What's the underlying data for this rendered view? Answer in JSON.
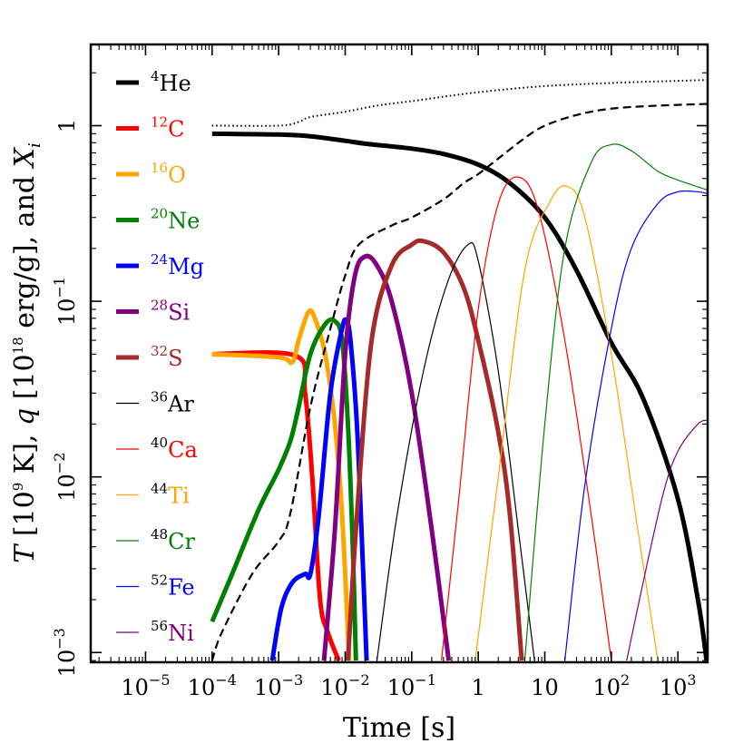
{
  "chart_data": {
    "type": "line",
    "xlabel": "Time [s]",
    "ylabel": "T [10^9 K], q [10^18 erg/g], and X_i",
    "x_scale": "log",
    "y_scale": "log",
    "xlim": [
      1.5e-06,
      2800
    ],
    "ylim": [
      0.00088,
      2.9
    ],
    "x_ticks": [
      {
        "value": 1e-05,
        "base": "10",
        "exp": "−5",
        "text": ""
      },
      {
        "value": 0.0001,
        "base": "10",
        "exp": "−4",
        "text": ""
      },
      {
        "value": 0.001,
        "base": "10",
        "exp": "−3",
        "text": ""
      },
      {
        "value": 0.01,
        "base": "10",
        "exp": "−2",
        "text": ""
      },
      {
        "value": 0.1,
        "base": "10",
        "exp": "−1",
        "text": ""
      },
      {
        "value": 1,
        "base": "",
        "exp": "",
        "text": "1"
      },
      {
        "value": 10,
        "base": "",
        "exp": "",
        "text": "10"
      },
      {
        "value": 100,
        "base": "10",
        "exp": "2",
        "text": ""
      },
      {
        "value": 1000,
        "base": "10",
        "exp": "3",
        "text": ""
      }
    ],
    "y_ticks": [
      {
        "value": 0.001,
        "base": "10",
        "exp": "−3",
        "text": ""
      },
      {
        "value": 0.01,
        "base": "10",
        "exp": "−2",
        "text": ""
      },
      {
        "value": 0.1,
        "base": "10",
        "exp": "−1",
        "text": ""
      },
      {
        "value": 1,
        "base": "",
        "exp": "",
        "text": "1"
      }
    ],
    "legend_position": "left",
    "series": [
      {
        "name": "4He",
        "mass": "4",
        "element": "He",
        "color": "#000000",
        "thick": true,
        "points": [
          [
            0.0001,
            0.9
          ],
          [
            0.001,
            0.89
          ],
          [
            0.003,
            0.87
          ],
          [
            0.01,
            0.82
          ],
          [
            0.02,
            0.79
          ],
          [
            0.1,
            0.74
          ],
          [
            0.3,
            0.69
          ],
          [
            1,
            0.6
          ],
          [
            3,
            0.47
          ],
          [
            10,
            0.3
          ],
          [
            30,
            0.15
          ],
          [
            100,
            0.058
          ],
          [
            300,
            0.028
          ],
          [
            1000,
            0.0075
          ],
          [
            2000,
            0.002
          ],
          [
            2700,
            0.0009
          ]
        ]
      },
      {
        "name": "12C",
        "mass": "12",
        "element": "C",
        "color": "#ff0000",
        "thick": true,
        "points": [
          [
            0.0001,
            0.05
          ],
          [
            0.0018,
            0.049
          ],
          [
            0.0025,
            0.03
          ],
          [
            0.0032,
            0.01
          ],
          [
            0.0042,
            0.002
          ],
          [
            0.0055,
            0.0013
          ],
          [
            0.008,
            0.0009
          ]
        ]
      },
      {
        "name": "16O",
        "mass": "16",
        "element": "O",
        "color": "#ffa500",
        "thick": true,
        "points": [
          [
            0.0001,
            0.05
          ],
          [
            0.001,
            0.048
          ],
          [
            0.0016,
            0.045
          ],
          [
            0.002,
            0.06
          ],
          [
            0.0028,
            0.087
          ],
          [
            0.0035,
            0.08
          ],
          [
            0.005,
            0.05
          ],
          [
            0.007,
            0.02
          ],
          [
            0.009,
            0.006
          ],
          [
            0.0115,
            0.0009
          ]
        ]
      },
      {
        "name": "20Ne",
        "mass": "20",
        "element": "Ne",
        "color": "#008000",
        "thick": true,
        "points": [
          [
            0.0001,
            0.0015
          ],
          [
            0.0002,
            0.0028
          ],
          [
            0.0005,
            0.0065
          ],
          [
            0.001,
            0.011
          ],
          [
            0.0015,
            0.016
          ],
          [
            0.002,
            0.025
          ],
          [
            0.003,
            0.05
          ],
          [
            0.005,
            0.074
          ],
          [
            0.007,
            0.077
          ],
          [
            0.009,
            0.06
          ],
          [
            0.011,
            0.02
          ],
          [
            0.013,
            0.004
          ],
          [
            0.0145,
            0.0009
          ]
        ]
      },
      {
        "name": "24Mg",
        "mass": "24",
        "element": "Mg",
        "color": "#0000ff",
        "thick": true,
        "points": [
          [
            0.0008,
            0.0009
          ],
          [
            0.0011,
            0.0018
          ],
          [
            0.0016,
            0.0025
          ],
          [
            0.0025,
            0.0028
          ],
          [
            0.003,
            0.0028
          ],
          [
            0.004,
            0.006
          ],
          [
            0.006,
            0.03
          ],
          [
            0.009,
            0.07
          ],
          [
            0.0105,
            0.077
          ],
          [
            0.012,
            0.06
          ],
          [
            0.015,
            0.02
          ],
          [
            0.018,
            0.004
          ],
          [
            0.021,
            0.0009
          ]
        ]
      },
      {
        "name": "28Si",
        "mass": "28",
        "element": "Si",
        "color": "#800080",
        "thick": true,
        "points": [
          [
            0.0048,
            0.0009
          ],
          [
            0.007,
            0.005
          ],
          [
            0.01,
            0.05
          ],
          [
            0.014,
            0.14
          ],
          [
            0.02,
            0.18
          ],
          [
            0.03,
            0.16
          ],
          [
            0.05,
            0.1
          ],
          [
            0.1,
            0.03
          ],
          [
            0.2,
            0.005
          ],
          [
            0.36,
            0.0009
          ]
        ]
      },
      {
        "name": "32S",
        "mass": "32",
        "element": "S",
        "color": "#a52a2a",
        "thick": true,
        "points": [
          [
            0.011,
            0.0009
          ],
          [
            0.015,
            0.006
          ],
          [
            0.025,
            0.06
          ],
          [
            0.05,
            0.16
          ],
          [
            0.1,
            0.21
          ],
          [
            0.15,
            0.22
          ],
          [
            0.3,
            0.19
          ],
          [
            0.6,
            0.12
          ],
          [
            1,
            0.06
          ],
          [
            2,
            0.018
          ],
          [
            3,
            0.006
          ],
          [
            4.5,
            0.0009
          ]
        ]
      },
      {
        "name": "36Ar",
        "mass": "36",
        "element": "Ar",
        "color": "#000000",
        "thick": false,
        "points": [
          [
            0.03,
            0.0009
          ],
          [
            0.06,
            0.006
          ],
          [
            0.15,
            0.04
          ],
          [
            0.35,
            0.13
          ],
          [
            0.7,
            0.21
          ],
          [
            1,
            0.17
          ],
          [
            2,
            0.04
          ],
          [
            4,
            0.005
          ],
          [
            7,
            0.0009
          ]
        ]
      },
      {
        "name": "40Ca",
        "mass": "40",
        "element": "Ca",
        "color": "#ff0000",
        "thick": false,
        "points": [
          [
            0.28,
            0.0009
          ],
          [
            0.5,
            0.007
          ],
          [
            1,
            0.09
          ],
          [
            2,
            0.36
          ],
          [
            4,
            0.51
          ],
          [
            8,
            0.33
          ],
          [
            20,
            0.06
          ],
          [
            50,
            0.006
          ],
          [
            100,
            0.0009
          ]
        ]
      },
      {
        "name": "44Ti",
        "mass": "44",
        "element": "Ti",
        "color": "#ffa500",
        "thick": false,
        "points": [
          [
            0.9,
            0.0009
          ],
          [
            2,
            0.01
          ],
          [
            5,
            0.15
          ],
          [
            12,
            0.37
          ],
          [
            22,
            0.45
          ],
          [
            40,
            0.3
          ],
          [
            100,
            0.05
          ],
          [
            250,
            0.005
          ],
          [
            500,
            0.0009
          ]
        ]
      },
      {
        "name": "48Cr",
        "mass": "48",
        "element": "Cr",
        "color": "#008000",
        "thick": false,
        "points": [
          [
            5,
            0.0009
          ],
          [
            10,
            0.02
          ],
          [
            20,
            0.2
          ],
          [
            50,
            0.62
          ],
          [
            100,
            0.78
          ],
          [
            200,
            0.72
          ],
          [
            500,
            0.55
          ],
          [
            1000,
            0.49
          ],
          [
            2800,
            0.43
          ]
        ]
      },
      {
        "name": "52Fe",
        "mass": "52",
        "element": "Fe",
        "color": "#0000ff",
        "thick": false,
        "points": [
          [
            20,
            0.0009
          ],
          [
            40,
            0.009
          ],
          [
            100,
            0.07
          ],
          [
            200,
            0.2
          ],
          [
            500,
            0.36
          ],
          [
            1000,
            0.42
          ],
          [
            2000,
            0.42
          ],
          [
            2800,
            0.41
          ]
        ]
      },
      {
        "name": "56Ni",
        "mass": "56",
        "element": "Ni",
        "color": "#800080",
        "thick": false,
        "points": [
          [
            170,
            0.0009
          ],
          [
            300,
            0.0025
          ],
          [
            600,
            0.008
          ],
          [
            1000,
            0.014
          ],
          [
            2000,
            0.02
          ],
          [
            2800,
            0.021
          ]
        ]
      },
      {
        "name": "",
        "style": "dotted",
        "color": "#000000",
        "thick": false,
        "in_legend": false,
        "points": [
          [
            0.0001,
            1.0
          ],
          [
            0.001,
            1.0
          ],
          [
            0.002,
            1.05
          ],
          [
            0.003,
            1.12
          ],
          [
            0.01,
            1.2
          ],
          [
            0.03,
            1.3
          ],
          [
            0.1,
            1.38
          ],
          [
            1,
            1.55
          ],
          [
            10,
            1.68
          ],
          [
            100,
            1.75
          ],
          [
            1000,
            1.8
          ],
          [
            2800,
            1.82
          ]
        ]
      },
      {
        "name": "",
        "style": "dashed",
        "color": "#000000",
        "thick": false,
        "in_legend": false,
        "points": [
          [
            0.0001,
            0.0009
          ],
          [
            0.00014,
            0.0013
          ],
          [
            0.0004,
            0.0028
          ],
          [
            0.001,
            0.0043
          ],
          [
            0.0015,
            0.0062
          ],
          [
            0.003,
            0.025
          ],
          [
            0.006,
            0.07
          ],
          [
            0.01,
            0.14
          ],
          [
            0.016,
            0.21
          ],
          [
            0.05,
            0.27
          ],
          [
            0.1,
            0.3
          ],
          [
            0.3,
            0.38
          ],
          [
            0.6,
            0.47
          ],
          [
            1,
            0.53
          ],
          [
            2,
            0.65
          ],
          [
            5,
            0.85
          ],
          [
            10,
            1.0
          ],
          [
            30,
            1.15
          ],
          [
            100,
            1.25
          ],
          [
            500,
            1.3
          ],
          [
            2800,
            1.33
          ]
        ]
      }
    ]
  }
}
